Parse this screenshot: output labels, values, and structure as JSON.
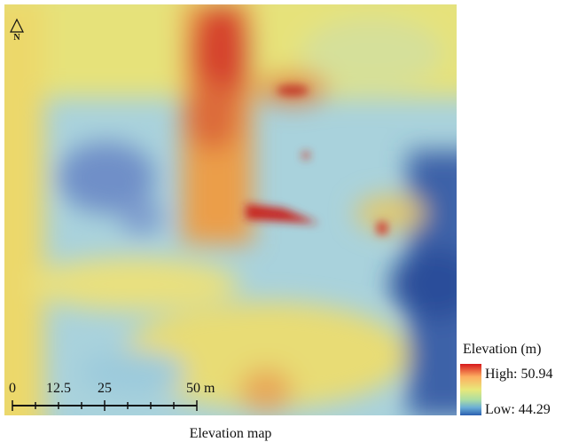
{
  "map": {
    "north_label": "N",
    "scale_bar": {
      "labels": [
        "0",
        "12.5",
        "25",
        "50 m"
      ]
    },
    "legend": {
      "title": "Elevation (m)",
      "high": "High: 50.94",
      "low": "Low: 44.29"
    },
    "caption": "Elevation map"
  }
}
